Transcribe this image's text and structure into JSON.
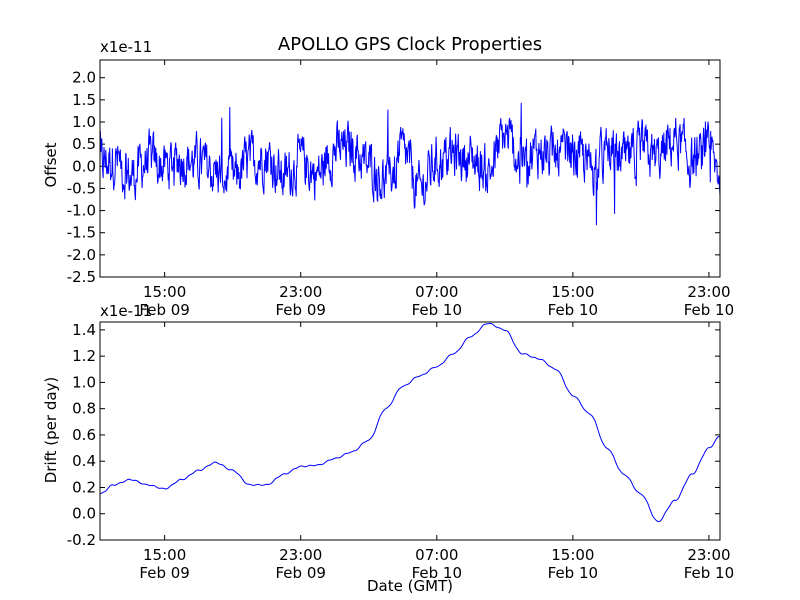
{
  "chart_data": [
    {
      "type": "line",
      "title": "APOLLO GPS Clock Properties",
      "ylabel": "Offset",
      "xlabel": "",
      "y_scale_label": "x1e-11",
      "ylim": [
        -2.5,
        2.4
      ],
      "y_ticks": [
        2.0,
        1.5,
        1.0,
        0.5,
        0.0,
        -0.5,
        -1.0,
        -1.5,
        -2.0,
        -2.5
      ],
      "y_tick_labels": [
        "2.0",
        "1.5",
        "1.0",
        "0.5",
        "0.0",
        "-0.5",
        "-1.0",
        "-1.5",
        "-2.0",
        "-2.5"
      ],
      "xlim": [
        "2014-02-09 11:12",
        "2014-02-10 23:39"
      ],
      "x_ticks": [
        "2014-02-09 15:00",
        "2014-02-09 23:00",
        "2014-02-10 07:00",
        "2014-02-10 15:00",
        "2014-02-10 23:00"
      ],
      "x_tick_labels": [
        {
          "time": "15:00",
          "date": "Feb 09"
        },
        {
          "time": "23:00",
          "date": "Feb 09"
        },
        {
          "time": "07:00",
          "date": "Feb 10"
        },
        {
          "time": "15:00",
          "date": "Feb 10"
        },
        {
          "time": "23:00",
          "date": "Feb 10"
        }
      ],
      "grid": false,
      "color": "#0000ff",
      "series": [
        {
          "x": [
            "2014-02-09 11:12",
            "2014-02-09 12:00",
            "2014-02-09 13:00",
            "2014-02-09 14:00",
            "2014-02-09 15:00",
            "2014-02-09 16:00",
            "2014-02-09 17:00",
            "2014-02-09 18:00",
            "2014-02-09 19:00",
            "2014-02-09 20:00",
            "2014-02-09 21:00",
            "2014-02-09 22:00",
            "2014-02-09 23:00",
            "2014-02-10 00:00",
            "2014-02-10 01:00",
            "2014-02-10 02:00",
            "2014-02-10 03:00",
            "2014-02-10 04:00",
            "2014-02-10 05:00",
            "2014-02-10 06:00",
            "2014-02-10 07:00",
            "2014-02-10 08:00",
            "2014-02-10 09:00",
            "2014-02-10 10:00",
            "2014-02-10 11:00",
            "2014-02-10 12:00",
            "2014-02-10 13:00",
            "2014-02-10 14:00",
            "2014-02-10 15:00",
            "2014-02-10 16:00",
            "2014-02-10 17:00",
            "2014-02-10 18:00",
            "2014-02-10 19:00",
            "2014-02-10 20:00",
            "2014-02-10 21:00",
            "2014-02-10 22:00",
            "2014-02-10 23:00",
            "2014-02-10 23:39"
          ],
          "y": [
            0.1,
            0.3,
            -0.4,
            0.2,
            0.0,
            0.3,
            0.1,
            -0.2,
            -0.5,
            0.2,
            0.4,
            -0.4,
            0.2,
            -0.3,
            0.6,
            0.7,
            0.0,
            -0.5,
            0.5,
            -0.9,
            0.2,
            0.4,
            0.3,
            -0.2,
            1.1,
            0.2,
            0.6,
            0.3,
            0.5,
            0.0,
            0.4,
            0.2,
            0.6,
            0.3,
            1.0,
            0.2,
            0.4,
            -0.3
          ]
        }
      ]
    },
    {
      "type": "line",
      "title": "",
      "ylabel": "Drift (per day)",
      "xlabel": "Date (GMT)",
      "y_scale_label": "x1e-11",
      "ylim": [
        -0.2,
        1.46
      ],
      "y_ticks": [
        1.4,
        1.2,
        1.0,
        0.8,
        0.6,
        0.4,
        0.2,
        0.0,
        -0.2
      ],
      "y_tick_labels": [
        "1.4",
        "1.2",
        "1.0",
        "0.8",
        "0.6",
        "0.4",
        "0.2",
        "0.0",
        "-0.2"
      ],
      "xlim": [
        "2014-02-09 11:12",
        "2014-02-10 23:39"
      ],
      "x_ticks": [
        "2014-02-09 15:00",
        "2014-02-09 23:00",
        "2014-02-10 07:00",
        "2014-02-10 15:00",
        "2014-02-10 23:00"
      ],
      "x_tick_labels": [
        {
          "time": "15:00",
          "date": "Feb 09"
        },
        {
          "time": "23:00",
          "date": "Feb 09"
        },
        {
          "time": "07:00",
          "date": "Feb 10"
        },
        {
          "time": "15:00",
          "date": "Feb 10"
        },
        {
          "time": "23:00",
          "date": "Feb 10"
        }
      ],
      "grid": false,
      "color": "#0000ff",
      "series": [
        {
          "x": [
            "2014-02-09 11:12",
            "2014-02-09 12:00",
            "2014-02-09 13:00",
            "2014-02-09 14:00",
            "2014-02-09 15:00",
            "2014-02-09 16:00",
            "2014-02-09 17:00",
            "2014-02-09 18:00",
            "2014-02-09 19:00",
            "2014-02-09 20:00",
            "2014-02-09 21:00",
            "2014-02-09 22:00",
            "2014-02-09 23:00",
            "2014-02-10 00:00",
            "2014-02-10 01:00",
            "2014-02-10 02:00",
            "2014-02-10 03:00",
            "2014-02-10 04:00",
            "2014-02-10 05:00",
            "2014-02-10 06:00",
            "2014-02-10 07:00",
            "2014-02-10 08:00",
            "2014-02-10 09:00",
            "2014-02-10 10:00",
            "2014-02-10 11:00",
            "2014-02-10 12:00",
            "2014-02-10 13:00",
            "2014-02-10 14:00",
            "2014-02-10 15:00",
            "2014-02-10 16:00",
            "2014-02-10 17:00",
            "2014-02-10 18:00",
            "2014-02-10 19:00",
            "2014-02-10 20:00",
            "2014-02-10 21:00",
            "2014-02-10 22:00",
            "2014-02-10 23:00",
            "2014-02-10 23:39"
          ],
          "y": [
            0.15,
            0.22,
            0.26,
            0.22,
            0.19,
            0.26,
            0.33,
            0.39,
            0.33,
            0.22,
            0.22,
            0.3,
            0.36,
            0.37,
            0.42,
            0.47,
            0.56,
            0.8,
            0.97,
            1.05,
            1.12,
            1.22,
            1.35,
            1.45,
            1.4,
            1.22,
            1.18,
            1.1,
            0.9,
            0.76,
            0.5,
            0.3,
            0.15,
            -0.06,
            0.1,
            0.3,
            0.5,
            0.59
          ]
        }
      ]
    }
  ]
}
